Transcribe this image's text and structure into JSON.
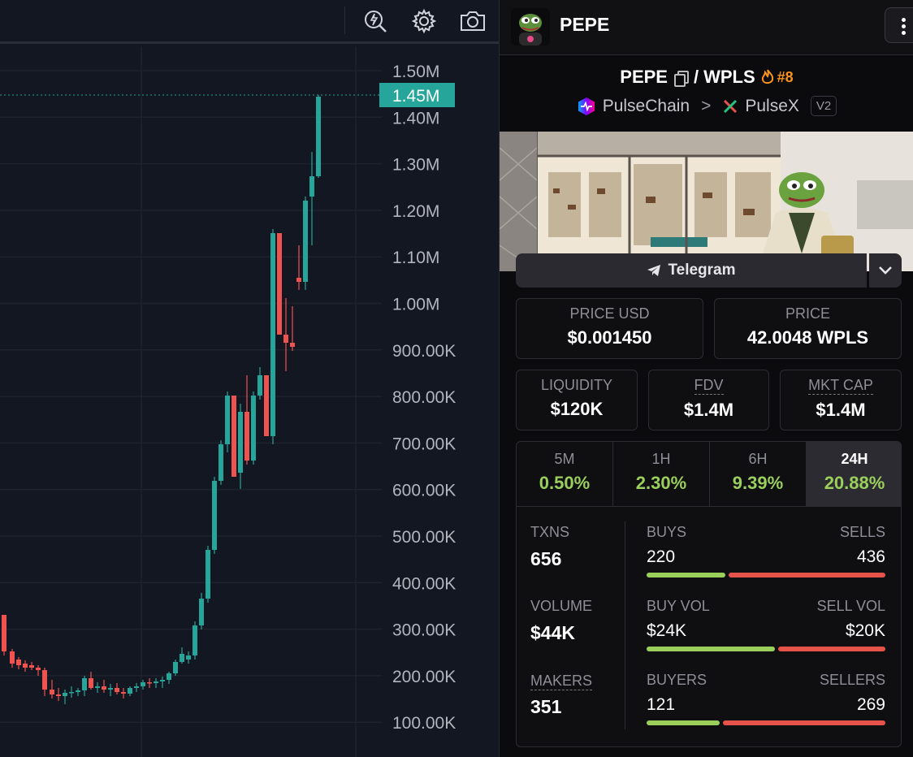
{
  "chart": {
    "price_axis_ticks": [
      "1.50M",
      "1.40M",
      "1.30M",
      "1.20M",
      "1.10M",
      "1.00M",
      "900.00K",
      "800.00K",
      "700.00K",
      "600.00K",
      "500.00K",
      "400.00K",
      "300.00K",
      "200.00K",
      "100.00K"
    ],
    "current_price_label": "1.45M",
    "colors": {
      "up": "#26a69a",
      "down": "#ef5350",
      "price_label_bg": "#26a69a",
      "background": "#131722"
    }
  },
  "toolbar": {
    "icons": [
      "lightning-magnifier-icon",
      "gear-icon",
      "camera-icon"
    ]
  },
  "token": {
    "name": "PEPE",
    "pair_base": "PEPE",
    "pair_separator": "/",
    "pair_quote": "WPLS",
    "rank": "#8",
    "chain": "PulseChain",
    "chain_separator": ">",
    "dex": "PulseX",
    "dex_version": "V2"
  },
  "links": {
    "telegram_label": "Telegram"
  },
  "prices": {
    "usd_label": "PRICE USD",
    "usd_value": "$0.001450",
    "native_label": "PRICE",
    "native_value": "42.0048 WPLS"
  },
  "stats": {
    "liquidity_label": "LIQUIDITY",
    "liquidity_value": "$120K",
    "fdv_label": "FDV",
    "fdv_value": "$1.4M",
    "mktcap_label": "MKT CAP",
    "mktcap_value": "$1.4M"
  },
  "timeframes": [
    {
      "label": "5M",
      "value": "0.50%"
    },
    {
      "label": "1H",
      "value": "2.30%"
    },
    {
      "label": "6H",
      "value": "9.39%"
    },
    {
      "label": "24H",
      "value": "20.88%"
    }
  ],
  "activity": {
    "txns_label": "TXNS",
    "txns_value": "656",
    "volume_label": "VOLUME",
    "volume_value": "$44K",
    "makers_label": "MAKERS",
    "makers_value": "351",
    "buys_label": "BUYS",
    "buys_value": "220",
    "sells_label": "SELLS",
    "sells_value": "436",
    "buy_vol_label": "BUY VOL",
    "buy_vol_value": "$24K",
    "sell_vol_label": "SELL VOL",
    "sell_vol_value": "$20K",
    "buyers_label": "BUYERS",
    "buyers_value": "121",
    "sellers_label": "SELLERS",
    "sellers_value": "269"
  },
  "splits": {
    "buys_fraction": 0.335,
    "buy_vol_fraction": 0.545,
    "buyers_fraction": 0.31
  },
  "colors": {
    "positive": "#9bcf5c",
    "negative": "#e5534b",
    "rank": "#f7931a"
  }
}
